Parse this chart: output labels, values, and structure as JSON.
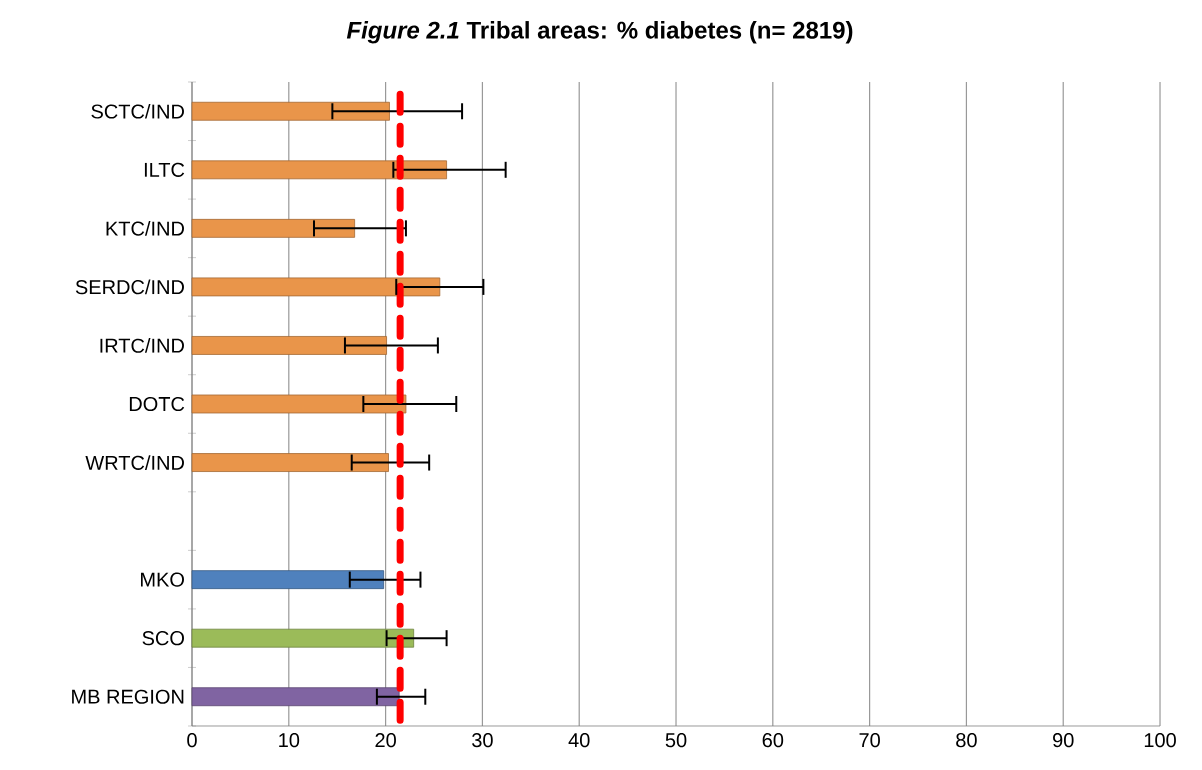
{
  "chart_data": {
    "type": "bar",
    "orientation": "horizontal",
    "title": "*Figure 2.1* Tribal areas: % diabetes (n= 2819)",
    "categories": [
      "SCTC/IND",
      "ILTC",
      "KTC/IND",
      "SERDC/IND",
      "IRTC/IND",
      "DOTC",
      "WRTC/IND",
      null,
      "MKO",
      "SCO",
      "MB REGION"
    ],
    "values": [
      20.4,
      26.3,
      16.8,
      25.6,
      20.1,
      22.1,
      20.3,
      null,
      19.8,
      22.9,
      21.4
    ],
    "colors": [
      "#e9954a",
      "#e9954a",
      "#e9954a",
      "#e9954a",
      "#e9954a",
      "#e9954a",
      "#e9954a",
      null,
      "#4f81bd",
      "#9bbb59",
      "#8064a2"
    ],
    "errors": [
      [
        14.5,
        27.9
      ],
      [
        20.8,
        32.4
      ],
      [
        12.6,
        22.1
      ],
      [
        21.1,
        30.1
      ],
      [
        15.8,
        25.4
      ],
      [
        17.7,
        27.3
      ],
      [
        16.5,
        24.5
      ],
      null,
      [
        16.3,
        23.6
      ],
      [
        20.1,
        26.3
      ],
      [
        19.1,
        24.1
      ]
    ],
    "ref_lines": [
      {
        "axis": "x",
        "value": 21.5,
        "color": "#ff0000",
        "line_style": "dashed"
      }
    ],
    "xlim": [
      0,
      100
    ],
    "xticks": [
      0,
      10,
      20,
      30,
      40,
      50,
      60,
      70,
      80,
      90,
      100
    ],
    "grid": "x"
  }
}
